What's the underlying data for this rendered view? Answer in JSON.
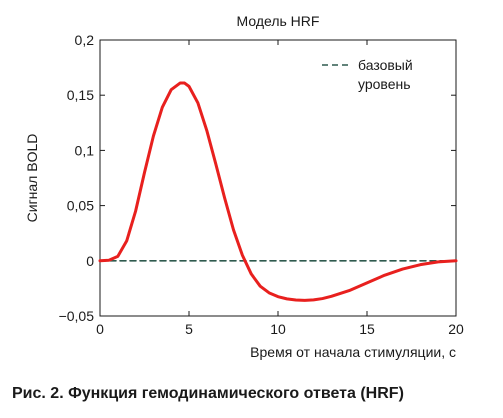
{
  "figure": {
    "caption": "Рис. 2. Функция гемодинамического ответа (HRF)"
  },
  "chart_data": {
    "type": "line",
    "title": "Модель HRF",
    "xlabel": "Время от начала стимуляции, с",
    "ylabel": "Сигнал BOLD",
    "xlim": [
      0,
      20
    ],
    "ylim": [
      -0.05,
      0.2
    ],
    "xticks": [
      0,
      5,
      10,
      15,
      20
    ],
    "xtick_labels": [
      "0",
      "5",
      "10",
      "15",
      "20"
    ],
    "yticks": [
      -0.05,
      0,
      0.05,
      0.1,
      0.15,
      0.2
    ],
    "ytick_labels": [
      "−0,05",
      "0",
      "0,05",
      "0,1",
      "0,15",
      "0,2"
    ],
    "grid": false,
    "legend": {
      "placement": "top-right",
      "lines": [
        "базовый",
        "уровень"
      ]
    },
    "series": [
      {
        "name": "HRF",
        "color": "#e8201e",
        "style": "solid",
        "x": [
          0,
          0.5,
          1,
          1.5,
          2,
          2.5,
          3,
          3.5,
          4,
          4.5,
          4.75,
          5,
          5.5,
          6,
          6.5,
          7,
          7.5,
          8,
          8.5,
          9,
          9.5,
          10,
          10.5,
          11,
          11.5,
          12,
          12.5,
          13,
          14,
          15,
          16,
          17,
          18,
          19,
          20
        ],
        "values": [
          0,
          0.0005,
          0.004,
          0.018,
          0.045,
          0.08,
          0.113,
          0.139,
          0.155,
          0.161,
          0.161,
          0.158,
          0.143,
          0.118,
          0.088,
          0.057,
          0.028,
          0.005,
          -0.012,
          -0.023,
          -0.029,
          -0.0325,
          -0.0345,
          -0.0355,
          -0.0358,
          -0.0354,
          -0.0342,
          -0.0322,
          -0.027,
          -0.02,
          -0.013,
          -0.0075,
          -0.0035,
          -0.001,
          0
        ]
      },
      {
        "name": "базовый уровень",
        "color": "#2f5a4e",
        "style": "dashed",
        "x": [
          0,
          20
        ],
        "values": [
          0,
          0
        ]
      }
    ]
  }
}
